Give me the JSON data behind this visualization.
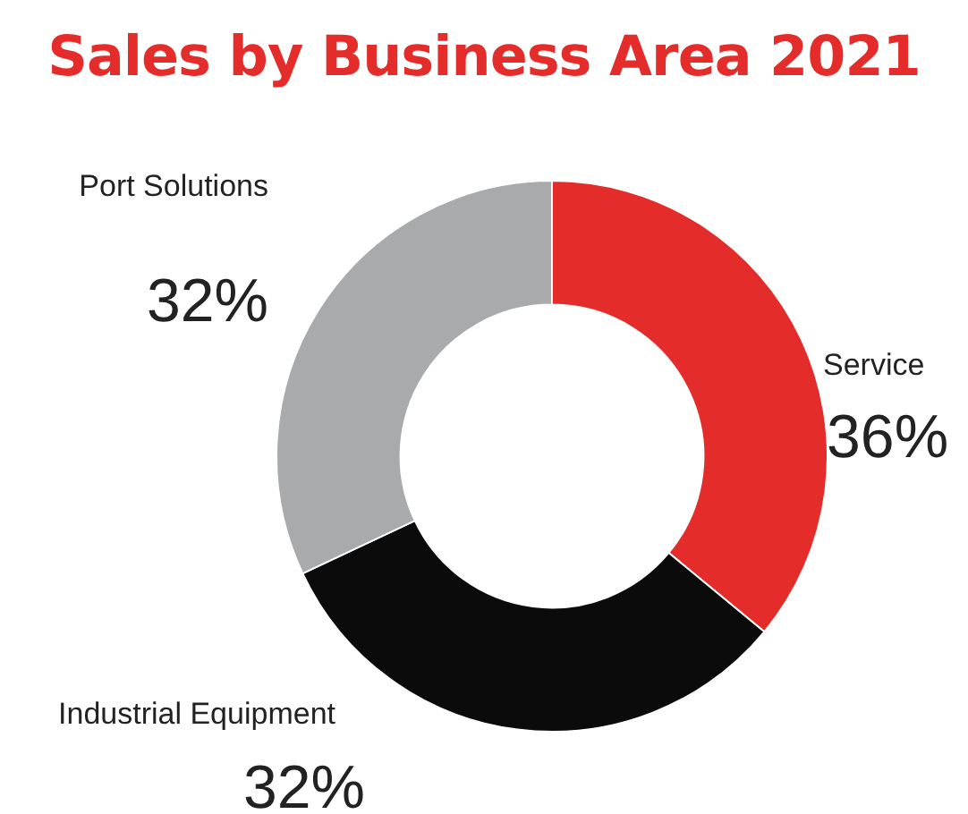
{
  "chart_data": {
    "type": "donut",
    "title": "Sales by Business Area 2021",
    "categories": [
      "Service",
      "Industrial Equipment",
      "Port Solutions"
    ],
    "values": [
      36,
      32,
      32
    ],
    "value_labels": [
      "36%",
      "32%",
      "32%"
    ],
    "colors": [
      "#e42d2b",
      "#0b0b0b",
      "#a8aaac"
    ],
    "legend": false
  }
}
